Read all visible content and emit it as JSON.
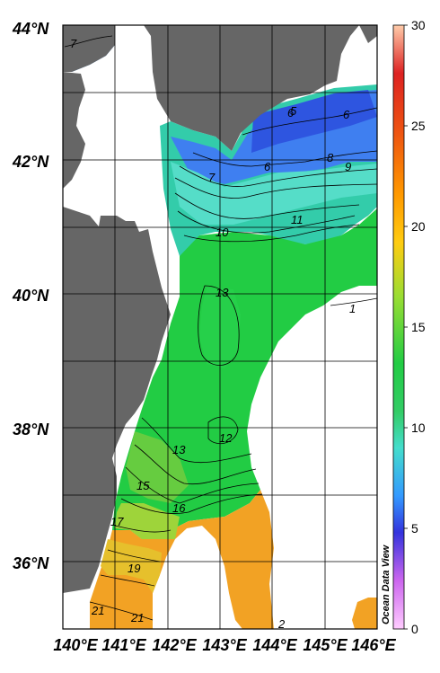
{
  "map": {
    "lat_labels": [
      "44°N",
      "42°N",
      "40°N",
      "38°N",
      "36°N"
    ],
    "lon_labels": [
      "140°E",
      "141°E",
      "142°E",
      "143°E",
      "144°E",
      "145°E",
      "146°E"
    ],
    "watermark": "Ocean Data View",
    "land_color": "#666666",
    "nodata_color": "#ffffff"
  },
  "colorbar": {
    "ticks": [
      "0",
      "5",
      "10",
      "15",
      "20",
      "25",
      "30"
    ],
    "min": 0,
    "max": 30,
    "colors": [
      "#ffccff",
      "#cc66ee",
      "#3333dd",
      "#3399ff",
      "#44ddcc",
      "#33cc66",
      "#22cc44",
      "#99dd33",
      "#ffcc11",
      "#ff9900",
      "#ee5511",
      "#dd2222",
      "#ffccaa"
    ]
  },
  "contour_labels": [
    "7",
    "6",
    "5",
    "6",
    "6",
    "8",
    "9",
    "7",
    "10",
    "11",
    "13",
    "1",
    "12",
    "13",
    "15",
    "16",
    "17",
    "19",
    "21",
    "21",
    "2"
  ]
}
